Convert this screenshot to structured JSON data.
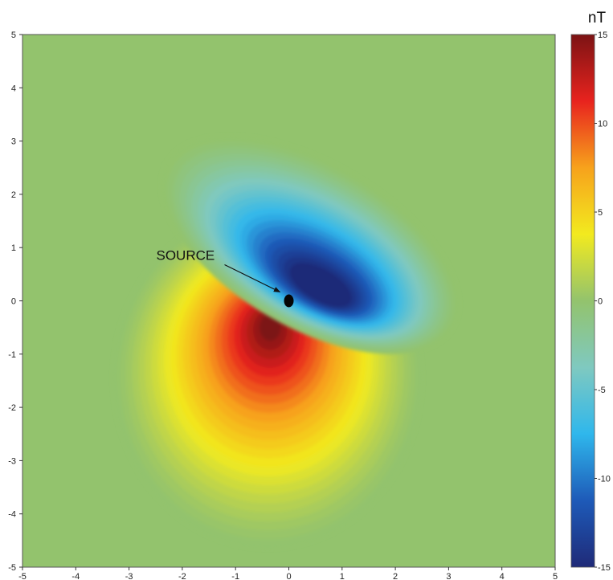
{
  "chart_data": {
    "type": "heatmap",
    "title": "",
    "xlabel": "",
    "ylabel": "",
    "xlim": [
      -5,
      5
    ],
    "ylim": [
      -5,
      5
    ],
    "x_ticks": [
      -5,
      -4,
      -3,
      -2,
      -1,
      0,
      1,
      2,
      3,
      4,
      5
    ],
    "y_ticks": [
      -5,
      -4,
      -3,
      -2,
      -1,
      0,
      1,
      2,
      3,
      4,
      5
    ],
    "grid": false,
    "colorbar": {
      "unit": "nT",
      "range": [
        -15,
        15
      ],
      "ticks": [
        15,
        10,
        5,
        0,
        -5,
        -10,
        -15
      ],
      "stops": [
        "#1f2a78",
        "#1e5ab8",
        "#2fb7ec",
        "#7fc9c0",
        "#93c36d",
        "#f2ea1f",
        "#f7a21c",
        "#e8231e",
        "#7c1314"
      ]
    },
    "extrema": {
      "max": {
        "x": -0.35,
        "y": -0.5,
        "value": 15
      },
      "min": {
        "x": 0.6,
        "y": 0.3,
        "value": -15
      }
    },
    "background_value": 0,
    "annotations": [
      {
        "text": "SOURCE",
        "x": 0,
        "y": 0
      }
    ]
  }
}
